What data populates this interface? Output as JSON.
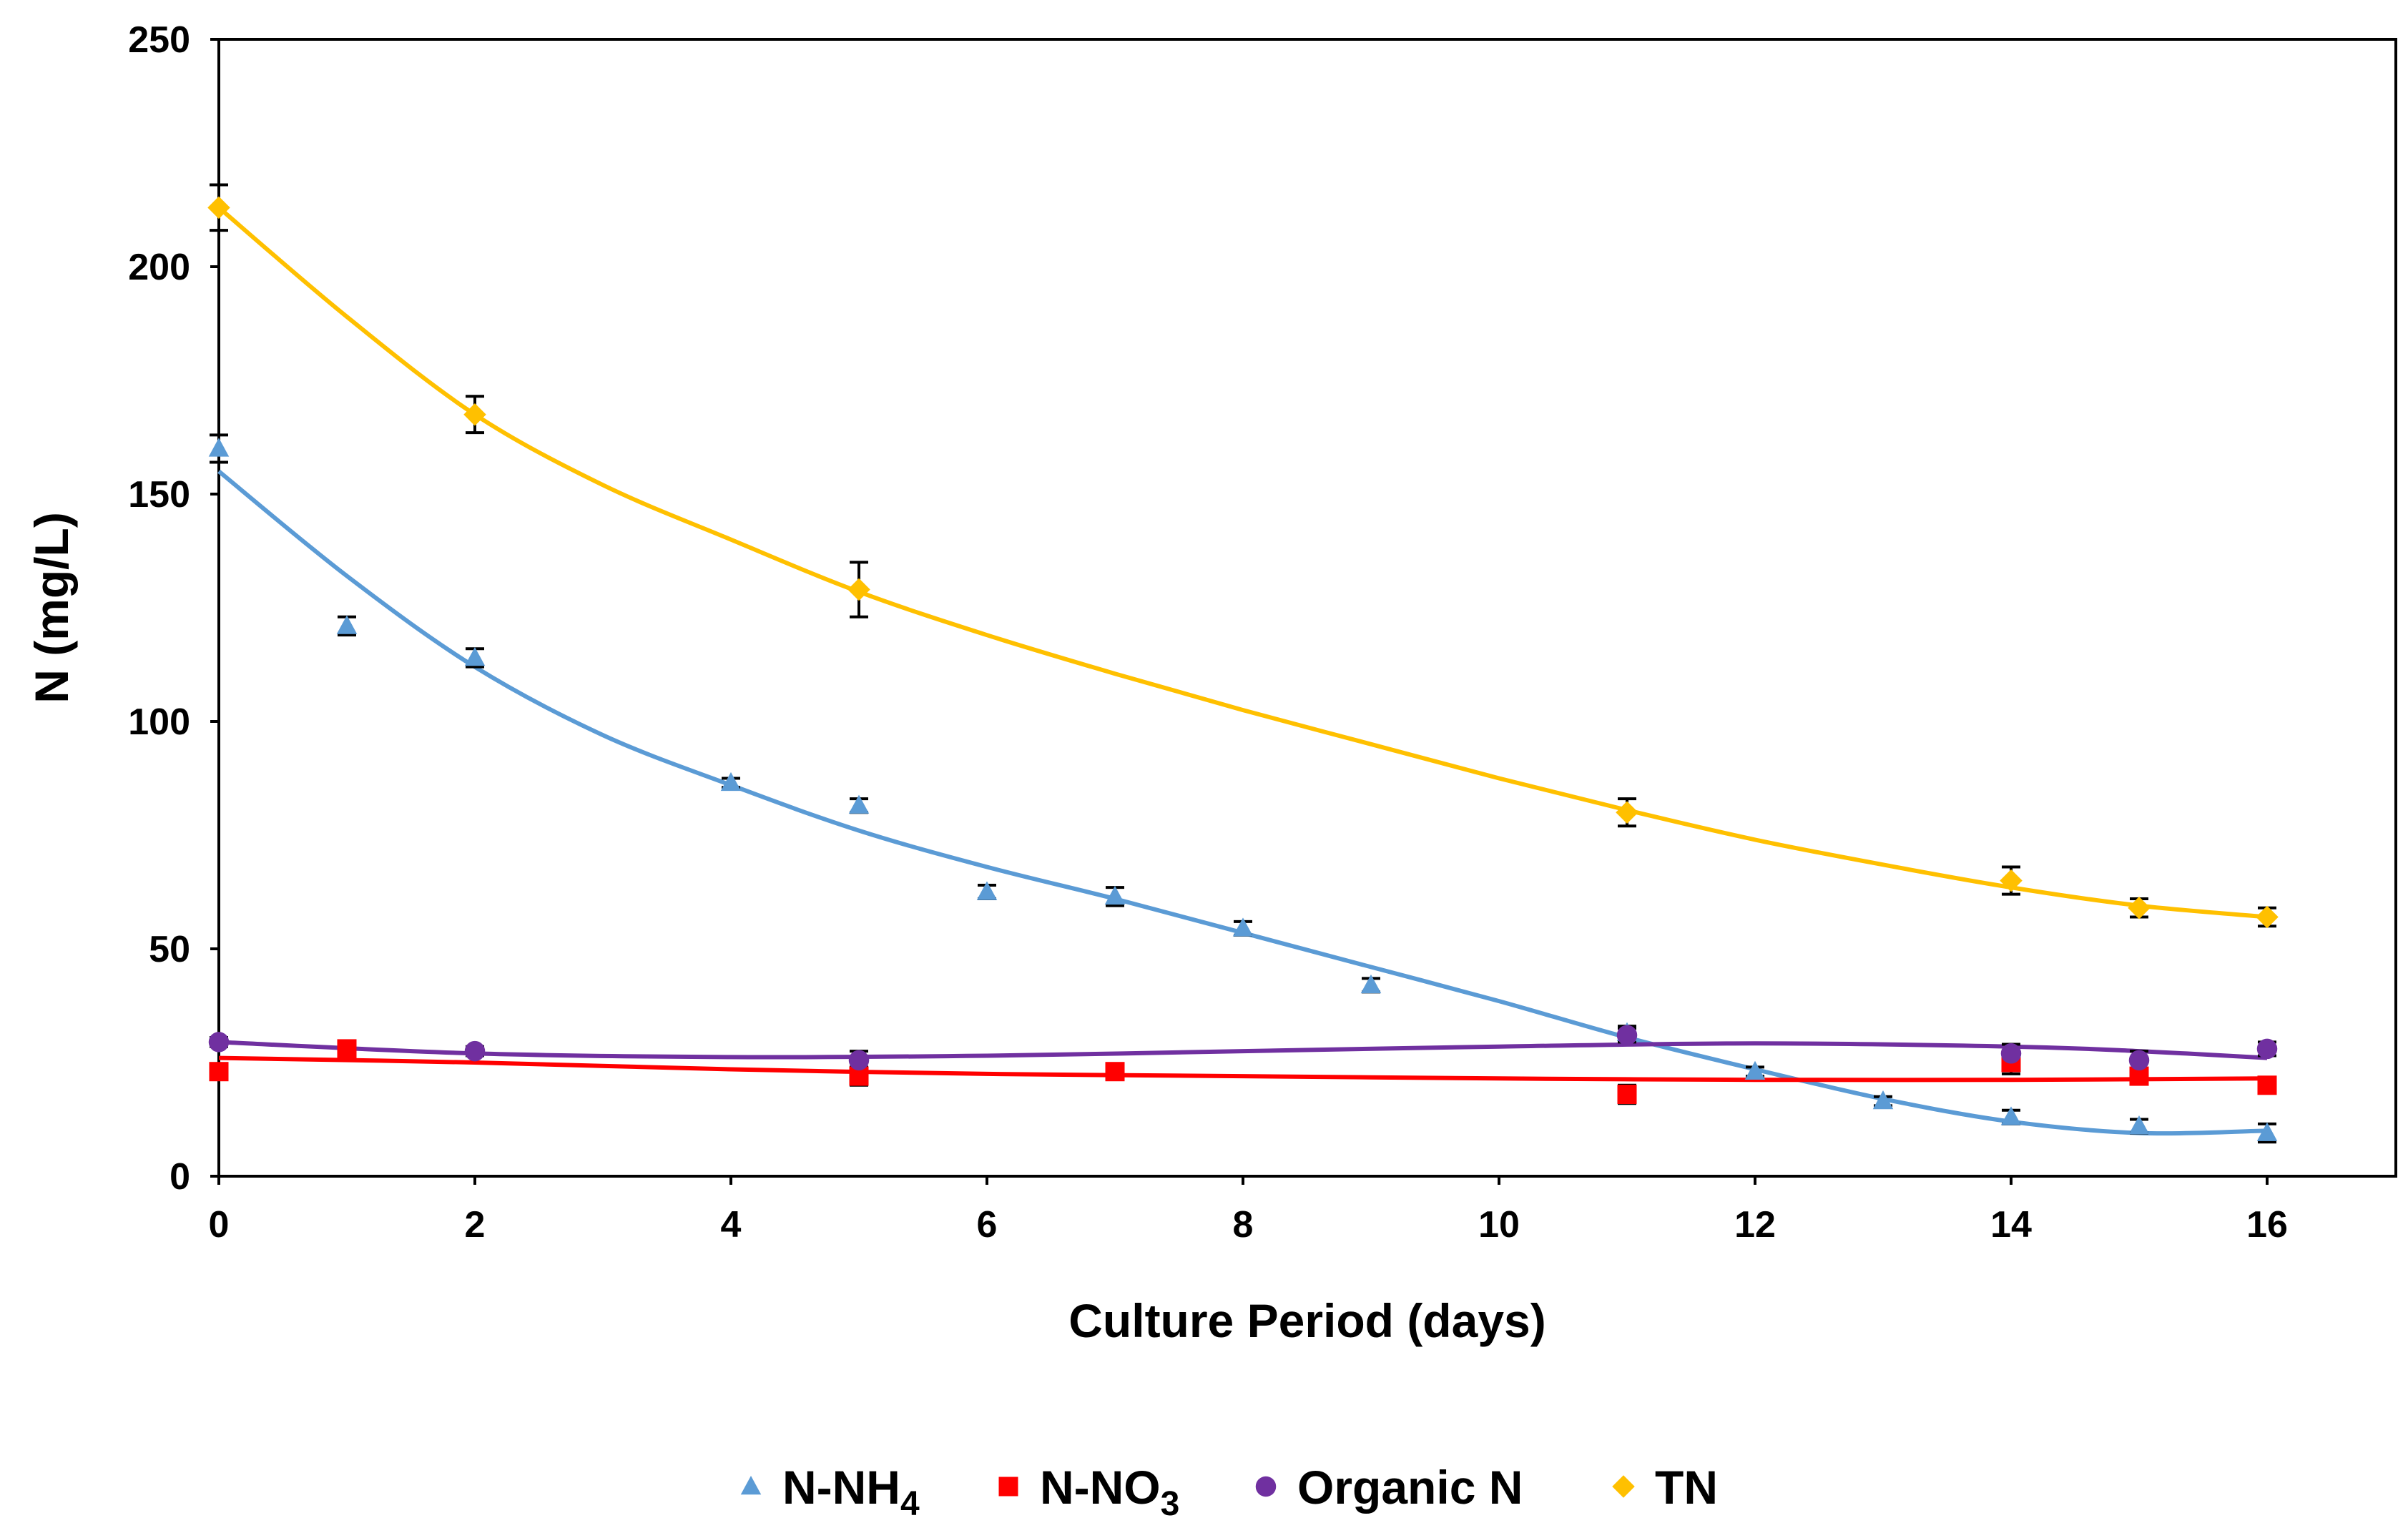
{
  "chart_data": {
    "type": "scatter",
    "xlabel": "Culture Period (days)",
    "ylabel": "N  (mg/L)",
    "xlim": [
      0,
      16
    ],
    "ylim": [
      0,
      250
    ],
    "x_ticks": [
      "0",
      "2",
      "4",
      "6",
      "8",
      "10",
      "12",
      "14",
      "16"
    ],
    "y_ticks": [
      "0",
      "50",
      "100",
      "150",
      "200",
      "250"
    ],
    "grid": false,
    "legend_position": "bottom",
    "series": [
      {
        "name": "N-NH",
        "name_sub": "4",
        "color": "#5b9bd5",
        "marker": "triangle",
        "points": [
          {
            "x": 0,
            "y": 160,
            "err": 3
          },
          {
            "x": 1,
            "y": 121,
            "err": 2
          },
          {
            "x": 2,
            "y": 114,
            "err": 2
          },
          {
            "x": 4,
            "y": 86.5,
            "err": 1
          },
          {
            "x": 5,
            "y": 81.5,
            "err": 1.5
          },
          {
            "x": 6,
            "y": 62.5,
            "err": 1.5
          },
          {
            "x": 7,
            "y": 61.5,
            "err": 2
          },
          {
            "x": 8,
            "y": 54.5,
            "err": 1.5
          },
          {
            "x": 9,
            "y": 42,
            "err": 1.5
          },
          {
            "x": 11,
            "y": 31.5,
            "err": 1.5
          },
          {
            "x": 12,
            "y": 23,
            "err": 1
          },
          {
            "x": 13,
            "y": 16.5,
            "err": 1
          },
          {
            "x": 14,
            "y": 13,
            "err": 1.5
          },
          {
            "x": 15,
            "y": 11,
            "err": 1.5
          },
          {
            "x": 16,
            "y": 9.5,
            "err": 2
          }
        ],
        "trend": [
          [
            0,
            155
          ],
          [
            1,
            132
          ],
          [
            2,
            112
          ],
          [
            3,
            97
          ],
          [
            4,
            86
          ],
          [
            5,
            76
          ],
          [
            6,
            68
          ],
          [
            7,
            61
          ],
          [
            8,
            53.5
          ],
          [
            9,
            46
          ],
          [
            10,
            38.5
          ],
          [
            11,
            30.5
          ],
          [
            12,
            23.5
          ],
          [
            13,
            17
          ],
          [
            14,
            12
          ],
          [
            15,
            9.5
          ],
          [
            16,
            10
          ]
        ]
      },
      {
        "name": "N-NO",
        "name_sub": "3",
        "color": "#ff0000",
        "marker": "square",
        "points": [
          {
            "x": 0,
            "y": 23,
            "err": 1.5
          },
          {
            "x": 1,
            "y": 28,
            "err": 1.5
          },
          {
            "x": 5,
            "y": 22,
            "err": 2
          },
          {
            "x": 7,
            "y": 23,
            "err": 1.5
          },
          {
            "x": 11,
            "y": 18,
            "err": 2
          },
          {
            "x": 14,
            "y": 25,
            "err": 2.5
          },
          {
            "x": 15,
            "y": 22,
            "err": 1.5
          },
          {
            "x": 16,
            "y": 20,
            "err": 1.5
          }
        ],
        "trend": [
          [
            0,
            26
          ],
          [
            2,
            25
          ],
          [
            4,
            23.5
          ],
          [
            6,
            22.5
          ],
          [
            8,
            22
          ],
          [
            10,
            21.5
          ],
          [
            12,
            21.2
          ],
          [
            14,
            21.2
          ],
          [
            16,
            21.5
          ]
        ]
      },
      {
        "name": "Organic N",
        "color": "#7030a0",
        "marker": "circle",
        "points": [
          {
            "x": 0,
            "y": 29.5,
            "err": 1
          },
          {
            "x": 2,
            "y": 27.5,
            "err": 1
          },
          {
            "x": 5,
            "y": 25.5,
            "err": 2
          },
          {
            "x": 11,
            "y": 31,
            "err": 1.5
          },
          {
            "x": 14,
            "y": 27,
            "err": 2
          },
          {
            "x": 15,
            "y": 25.5,
            "err": 2
          },
          {
            "x": 16,
            "y": 28,
            "err": 1.5
          }
        ],
        "trend": [
          [
            0,
            29.5
          ],
          [
            2,
            27
          ],
          [
            4,
            26.2
          ],
          [
            6,
            26.5
          ],
          [
            8,
            27.5
          ],
          [
            10,
            28.5
          ],
          [
            12,
            29.2
          ],
          [
            14,
            28.5
          ],
          [
            15,
            27.5
          ],
          [
            16,
            26
          ]
        ]
      },
      {
        "name": "TN",
        "color": "#ffc000",
        "marker": "diamond",
        "points": [
          {
            "x": 0,
            "y": 213,
            "err": 5
          },
          {
            "x": 2,
            "y": 167.5,
            "err": 4
          },
          {
            "x": 5,
            "y": 129,
            "err": 6
          },
          {
            "x": 11,
            "y": 80,
            "err": 3
          },
          {
            "x": 14,
            "y": 65,
            "err": 3
          },
          {
            "x": 15,
            "y": 59,
            "err": 2
          },
          {
            "x": 16,
            "y": 57,
            "err": 2
          }
        ],
        "trend": [
          [
            0,
            213
          ],
          [
            1,
            189
          ],
          [
            2,
            167.5
          ],
          [
            3,
            152
          ],
          [
            4,
            140
          ],
          [
            5,
            128.5
          ],
          [
            6,
            119
          ],
          [
            7,
            110.5
          ],
          [
            8,
            102.5
          ],
          [
            9,
            95
          ],
          [
            10,
            87.5
          ],
          [
            11,
            80.5
          ],
          [
            12,
            74
          ],
          [
            13,
            68.5
          ],
          [
            14,
            63.5
          ],
          [
            15,
            59.5
          ],
          [
            16,
            57
          ]
        ]
      }
    ]
  }
}
